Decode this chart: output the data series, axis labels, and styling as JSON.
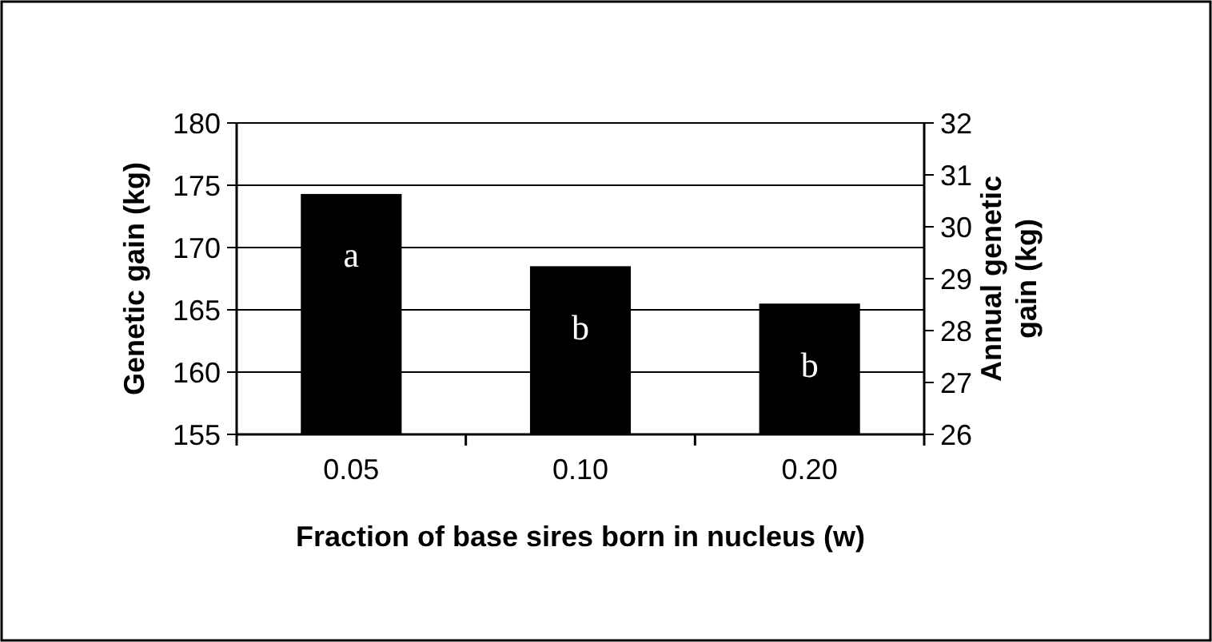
{
  "chart_data": {
    "type": "bar",
    "xlabel": "Fraction of base sires born in nucleus (w)",
    "ylabel": "Genetic gain (kg)",
    "y2label": "Annual genetic gain (kg)",
    "categories": [
      "0.05",
      "0.10",
      "0.20"
    ],
    "series": [
      {
        "color": "#000000",
        "values": [
          174.3,
          168.5,
          165.5
        ]
      }
    ],
    "ylim": [
      155,
      180
    ],
    "yticks": [
      155,
      160,
      165,
      170,
      175,
      180
    ],
    "y2lim": [
      26,
      32
    ],
    "y2ticks": [
      26,
      27,
      28,
      29,
      30,
      31,
      32
    ],
    "grid": "y",
    "annotations": [
      "a",
      "b",
      "b"
    ]
  }
}
